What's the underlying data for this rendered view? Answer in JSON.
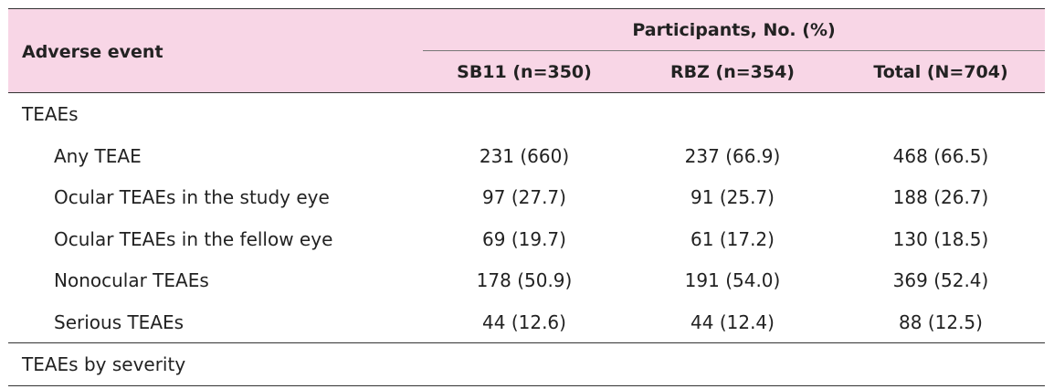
{
  "table": {
    "header": {
      "adverse_event": "Adverse event",
      "group_title": "Participants, No. (%)",
      "columns": [
        "SB11 (n=350)",
        "RBZ (n=354)",
        "Total (N=704)"
      ]
    },
    "sections": [
      {
        "title": "TEAEs",
        "rows": [
          {
            "label": "Any TEAE",
            "values": [
              "231 (660)",
              "237 (66.9)",
              "468 (66.5)"
            ]
          },
          {
            "label": "Ocular TEAEs in the study eye",
            "values": [
              "97 (27.7)",
              "91 (25.7)",
              "188 (26.7)"
            ]
          },
          {
            "label": "Ocular TEAEs in the fellow eye",
            "values": [
              "69 (19.7)",
              "61 (17.2)",
              "130 (18.5)"
            ]
          },
          {
            "label": "Nonocular TEAEs",
            "values": [
              "178 (50.9)",
              "191 (54.0)",
              "369 (52.4)"
            ]
          },
          {
            "label": "Serious TEAEs",
            "values": [
              "44 (12.6)",
              "44 (12.4)",
              "88 (12.5)"
            ]
          }
        ]
      },
      {
        "title": "TEAEs by severity",
        "rows": []
      }
    ]
  }
}
